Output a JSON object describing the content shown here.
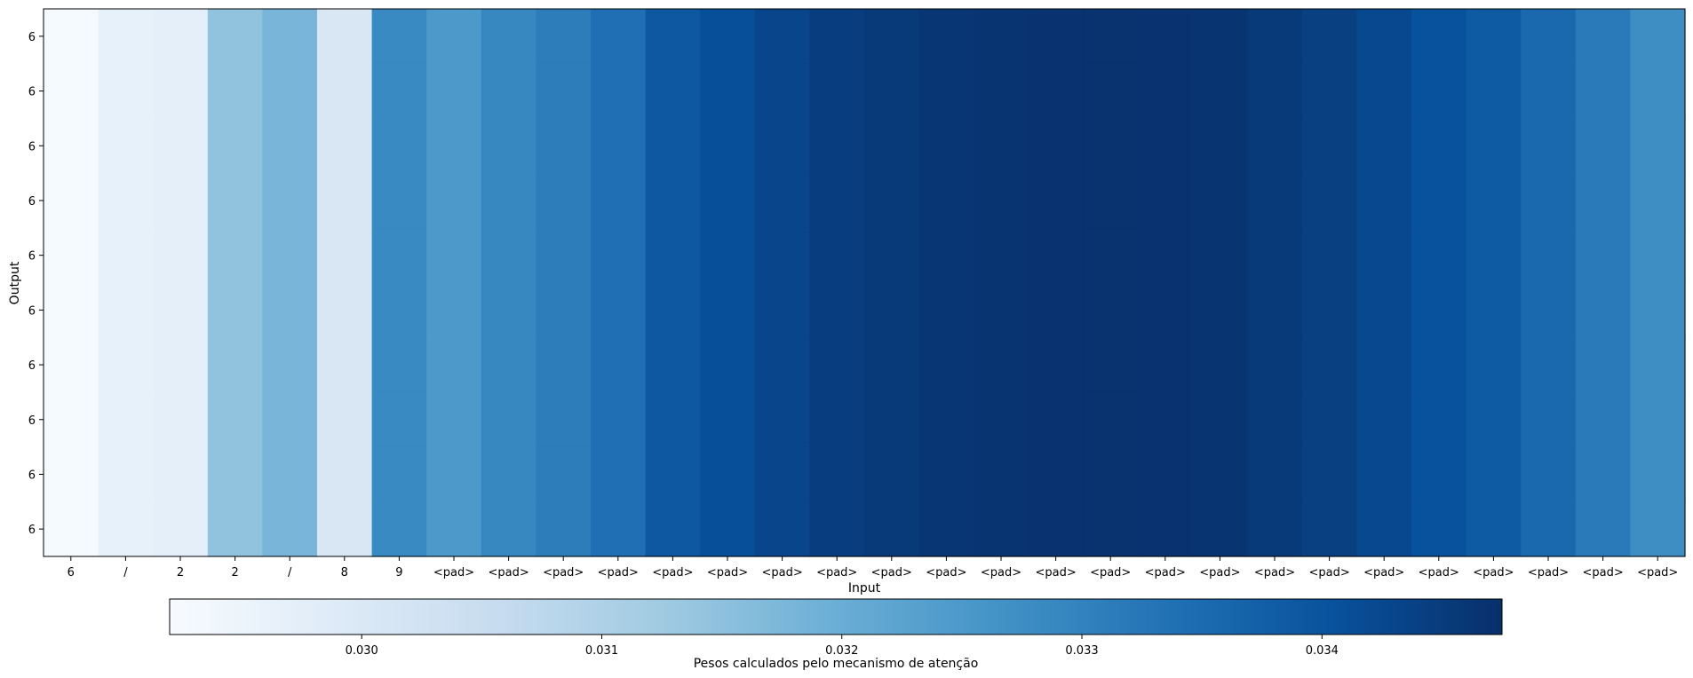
{
  "chart_data": {
    "type": "heatmap",
    "title": "",
    "xlabel": "Input",
    "ylabel": "Output",
    "x_tick_labels": [
      "6",
      "/",
      "2",
      "2",
      "/",
      "8",
      "9",
      "<pad>",
      "<pad>",
      "<pad>",
      "<pad>",
      "<pad>",
      "<pad>",
      "<pad>",
      "<pad>",
      "<pad>",
      "<pad>",
      "<pad>",
      "<pad>",
      "<pad>",
      "<pad>",
      "<pad>",
      "<pad>",
      "<pad>",
      "<pad>",
      "<pad>",
      "<pad>",
      "<pad>",
      "<pad>",
      "<pad>"
    ],
    "y_tick_labels": [
      "6",
      "6",
      "6",
      "6",
      "6",
      "6",
      "6",
      "6",
      "6",
      "6"
    ],
    "column_values": [
      0.02925,
      0.02965,
      0.0297,
      0.03145,
      0.0318,
      0.03005,
      0.03285,
      0.0325,
      0.0329,
      0.0331,
      0.0334,
      0.0339,
      0.0341,
      0.0343,
      0.03445,
      0.03455,
      0.03462,
      0.03466,
      0.03468,
      0.03469,
      0.03468,
      0.03466,
      0.03455,
      0.03442,
      0.03425,
      0.03405,
      0.03385,
      0.03355,
      0.03318,
      0.03275
    ],
    "colormap": "Blues",
    "colorbar": {
      "label": "Pesos calculados pelo mecanismo de atenção",
      "orientation": "horizontal",
      "placement": "bottom",
      "range": [
        0.0292,
        0.03475
      ],
      "ticks": [
        0.03,
        0.031,
        0.032,
        0.033,
        0.034
      ],
      "tick_labels": [
        "0.030",
        "0.031",
        "0.032",
        "0.033",
        "0.034"
      ]
    }
  }
}
